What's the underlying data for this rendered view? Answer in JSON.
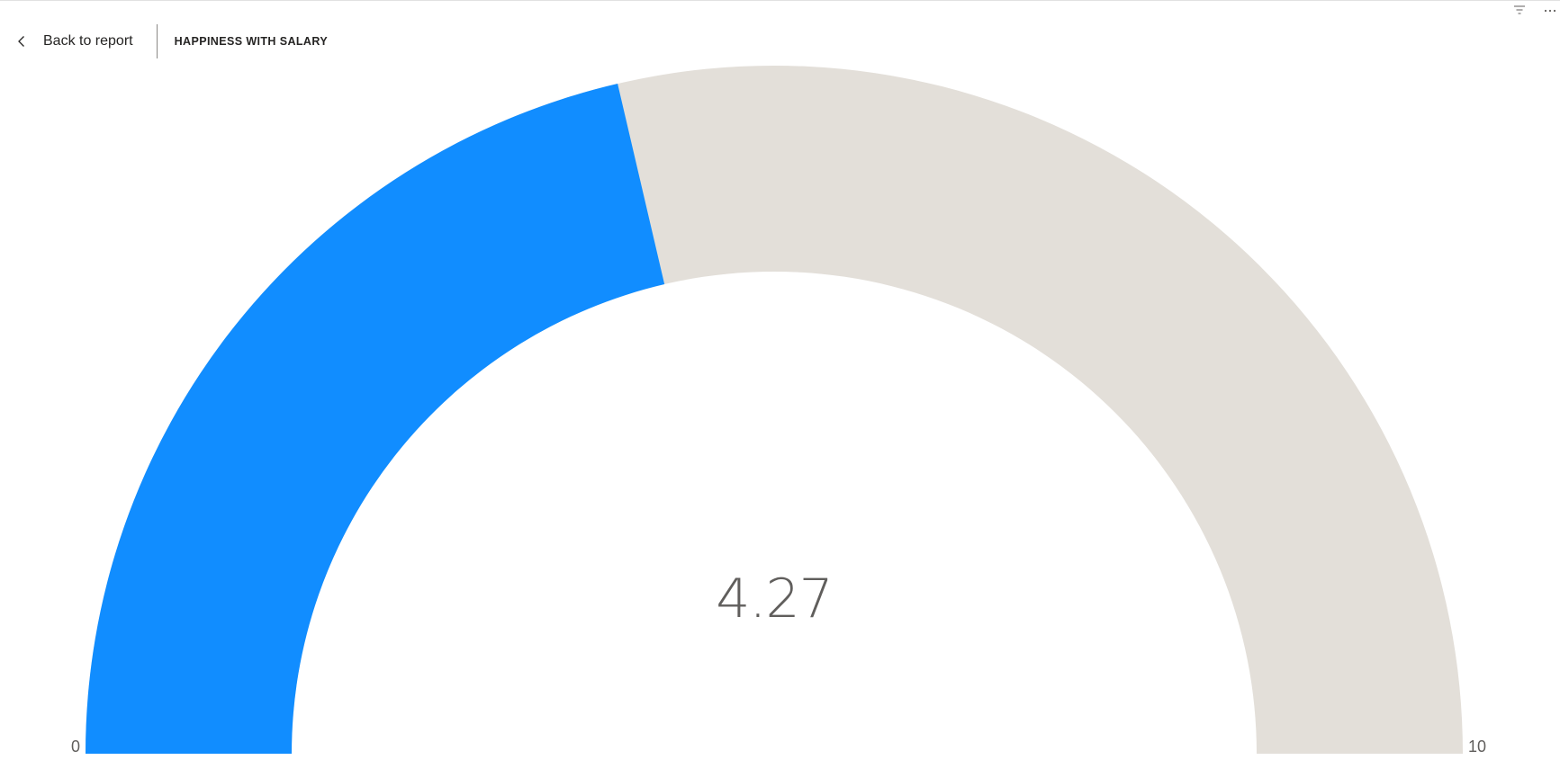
{
  "header": {
    "back_label": "Back to report",
    "title": "HAPPINESS WITH SALARY"
  },
  "icons": {
    "back": "chevron-left-icon",
    "filter": "filter-icon",
    "more": "more-options-icon"
  },
  "colors": {
    "fill": "#118DFF",
    "track": "#E3DFD9",
    "value_text": "#605E5C",
    "axis_text": "#605E5C"
  },
  "chart_data": {
    "type": "gauge",
    "value": 4.27,
    "value_label": "4.27",
    "min": 0,
    "max": 10,
    "min_label": "0",
    "max_label": "10",
    "title": "HAPPINESS WITH SALARY"
  }
}
